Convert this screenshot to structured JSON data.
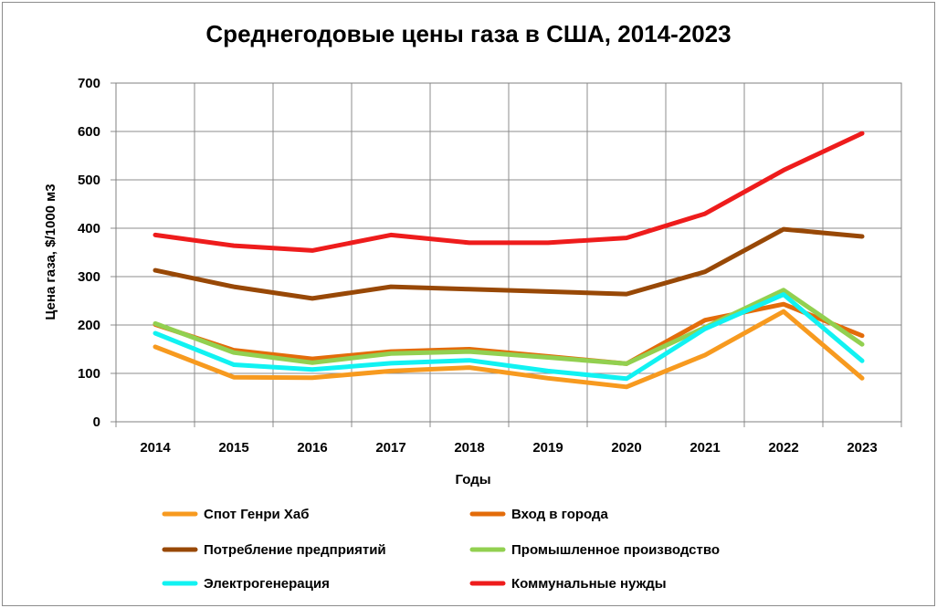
{
  "chart_data": {
    "type": "line",
    "title": "Среднегодовые цены газа в США, 2014-2023",
    "xlabel": "Годы",
    "ylabel": "Цена газа, $/1000 м3",
    "ylim": [
      0,
      700
    ],
    "yticks": [
      "0",
      "100",
      "200",
      "300",
      "400",
      "500",
      "600",
      "700"
    ],
    "grid": true,
    "legend_position": "bottom",
    "categories": [
      "2014",
      "2015",
      "2016",
      "2017",
      "2018",
      "2019",
      "2020",
      "2021",
      "2022",
      "2023"
    ],
    "series": [
      {
        "name": "Спот Генри Хаб",
        "color": "#f79a1f",
        "values": [
          155,
          92,
          91,
          105,
          112,
          90,
          72,
          138,
          228,
          90
        ]
      },
      {
        "name": "Вход в города",
        "color": "#e36c0a",
        "values": [
          201,
          148,
          130,
          145,
          150,
          135,
          120,
          210,
          243,
          178
        ]
      },
      {
        "name": "Потребление предприятий",
        "color": "#984806",
        "values": [
          313,
          279,
          255,
          279,
          274,
          269,
          264,
          310,
          398,
          383
        ]
      },
      {
        "name": "Промышленное производство",
        "color": "#92d050",
        "values": [
          203,
          143,
          122,
          141,
          145,
          133,
          120,
          195,
          272,
          160
        ]
      },
      {
        "name": "Электрогенерация",
        "color": "#11f2f2",
        "values": [
          183,
          118,
          108,
          121,
          127,
          105,
          89,
          192,
          263,
          126
        ]
      },
      {
        "name": "Коммунальные нужды",
        "color": "#ee1c1c",
        "values": [
          386,
          364,
          354,
          386,
          370,
          370,
          380,
          430,
          520,
          596
        ]
      }
    ]
  }
}
